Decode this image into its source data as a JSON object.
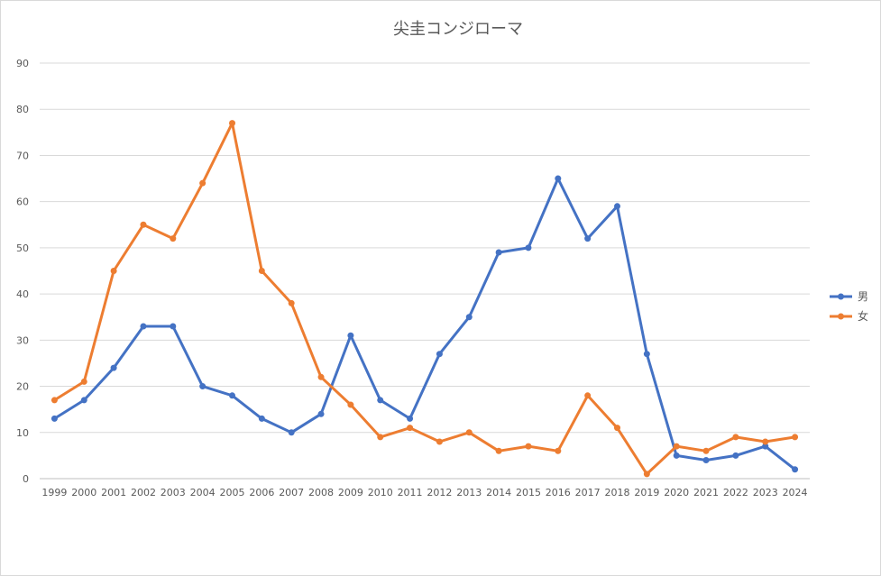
{
  "chart_data": {
    "type": "line",
    "title": "尖圭コンジローマ",
    "xlabel": "",
    "ylabel": "",
    "ylim": [
      0,
      90
    ],
    "ytick_step": 10,
    "grid": true,
    "legend_position": "right",
    "categories": [
      "1999",
      "2000",
      "2001",
      "2002",
      "2003",
      "2004",
      "2005",
      "2006",
      "2007",
      "2008",
      "2009",
      "2010",
      "2011",
      "2012",
      "2013",
      "2014",
      "2015",
      "2016",
      "2017",
      "2018",
      "2019",
      "2020",
      "2021",
      "2022",
      "2023",
      "2024"
    ],
    "series": [
      {
        "name": "男",
        "color": "#4472c4",
        "values": [
          13,
          17,
          24,
          33,
          33,
          20,
          18,
          13,
          10,
          14,
          31,
          17,
          13,
          27,
          35,
          49,
          50,
          65,
          52,
          59,
          27,
          5,
          4,
          5,
          7,
          2
        ]
      },
      {
        "name": "女",
        "color": "#ed7d31",
        "values": [
          17,
          21,
          45,
          55,
          52,
          64,
          77,
          45,
          38,
          22,
          16,
          9,
          11,
          8,
          10,
          6,
          7,
          6,
          18,
          11,
          1,
          7,
          6,
          9,
          8,
          9
        ]
      }
    ]
  }
}
